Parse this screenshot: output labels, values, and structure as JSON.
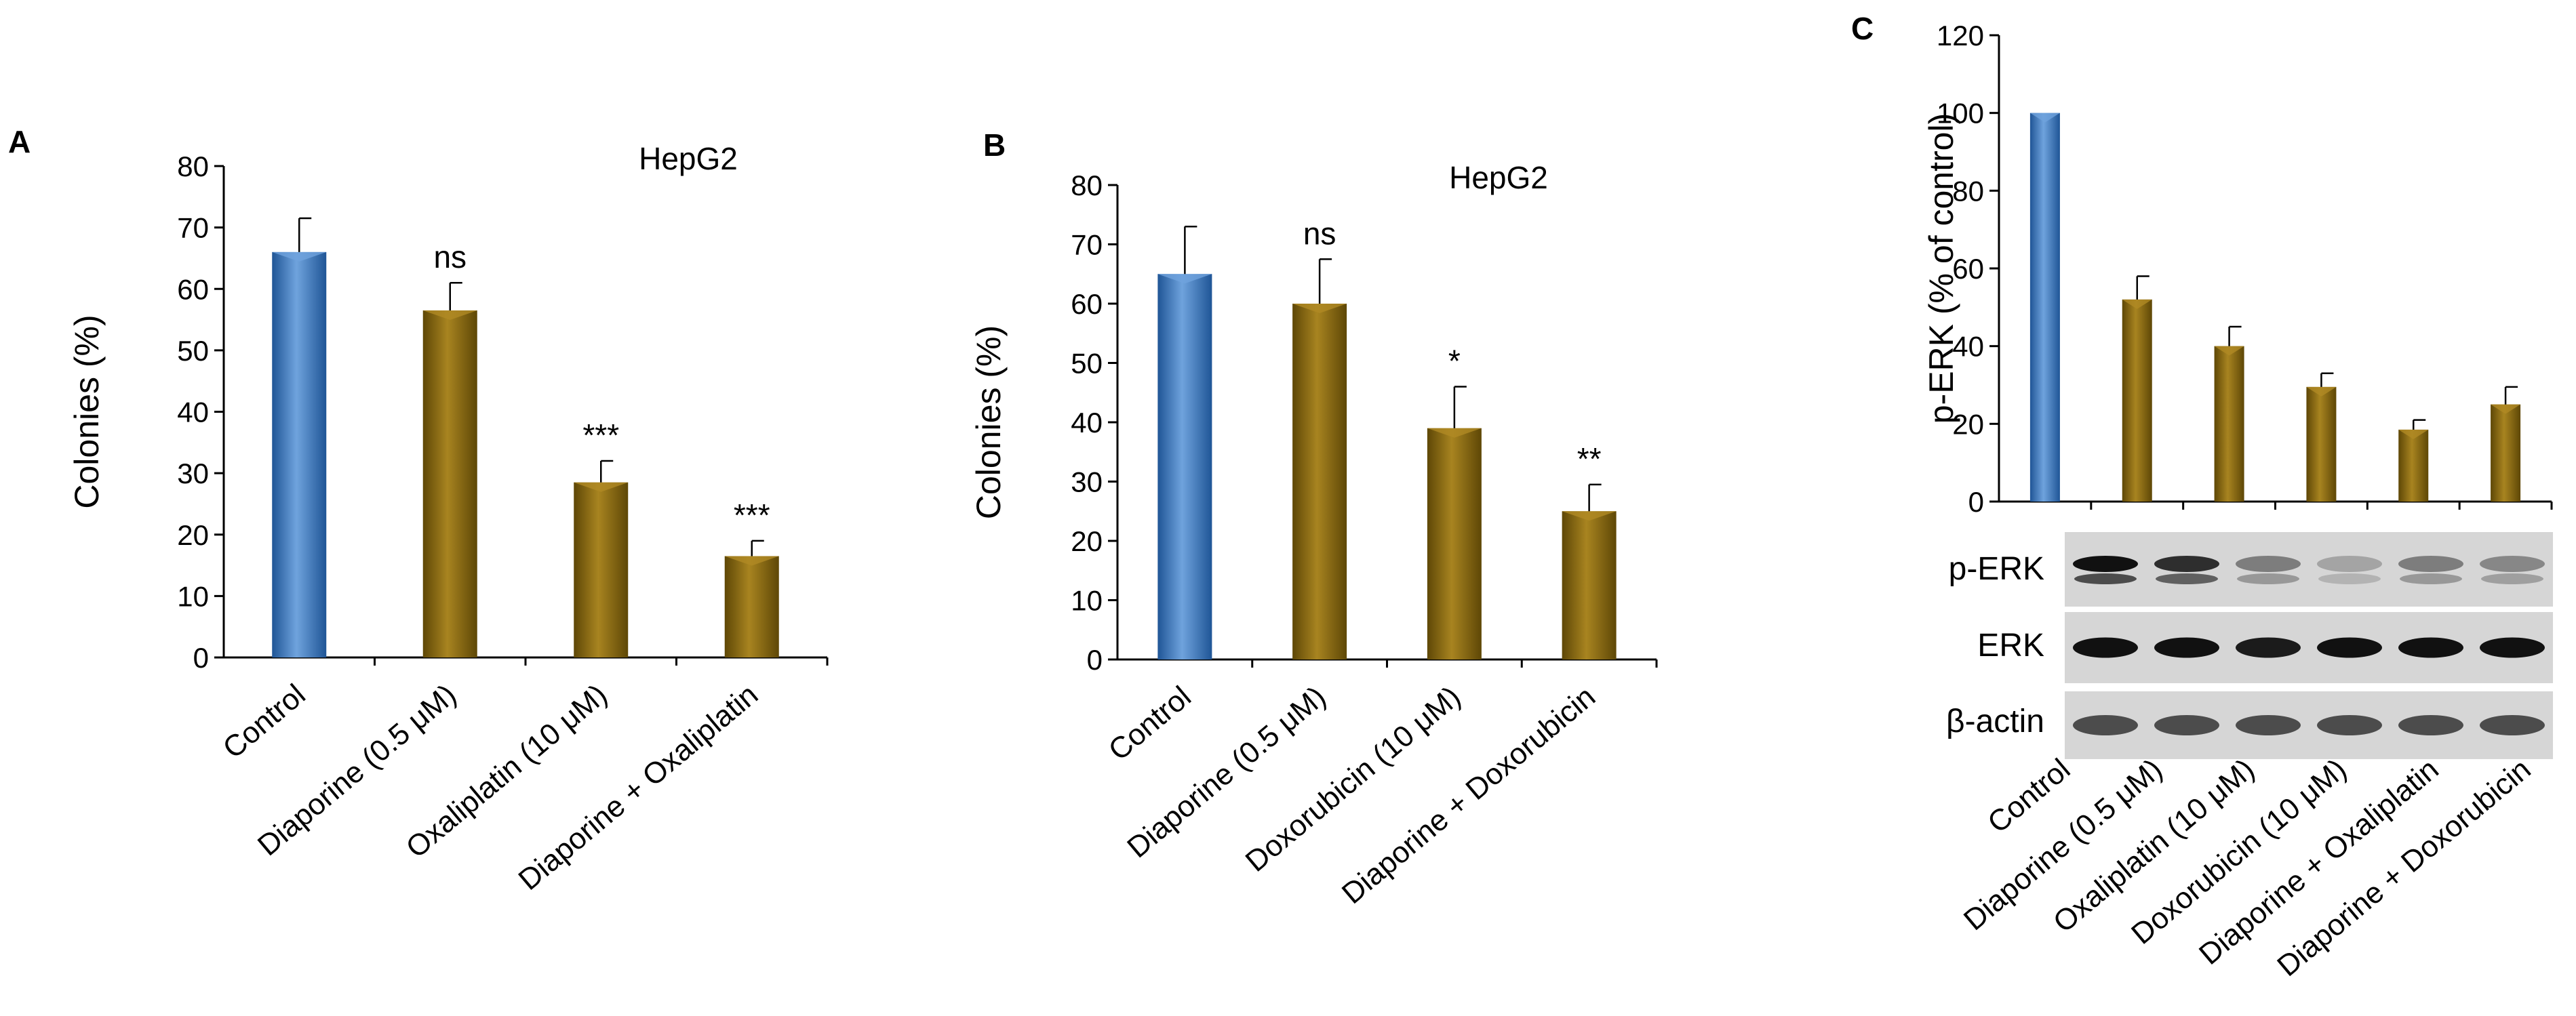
{
  "colors": {
    "control": "#2e6db4",
    "control_light": "#6fa3dd",
    "treated": "#7a5d0a",
    "treated_light": "#b08a24",
    "axis": "#000000",
    "blot_bg": "#d6d6d6"
  },
  "chart_data": [
    {
      "panel": "A",
      "type": "bar",
      "annotation": "HepG2",
      "categories": [
        "Control",
        "Diaporine (0.5 μM)",
        "Oxaliplatin (10 μM)",
        "Diaporine + Oxaliplatin"
      ],
      "values": [
        66,
        56.5,
        28.5,
        16.5
      ],
      "errors": [
        5.5,
        4.5,
        3.5,
        2.5
      ],
      "significance": [
        "",
        "ns",
        "***",
        "***"
      ],
      "ylabel": "Colonies (%)",
      "ylim": [
        0,
        80
      ],
      "yticks": [
        0,
        10,
        20,
        30,
        40,
        50,
        60,
        70,
        80
      ]
    },
    {
      "panel": "B",
      "type": "bar",
      "annotation": "HepG2",
      "categories": [
        "Control",
        "Diaporine (0.5 μM)",
        "Doxorubicin (10 μM)",
        "Diaporine + Doxorubicin"
      ],
      "values": [
        65,
        60,
        39,
        25
      ],
      "errors": [
        8,
        7.5,
        7,
        4.5
      ],
      "significance": [
        "",
        "ns",
        "*",
        "**"
      ],
      "ylabel": "Colonies (%)",
      "ylim": [
        0,
        80
      ],
      "yticks": [
        0,
        10,
        20,
        30,
        40,
        50,
        60,
        70,
        80
      ]
    },
    {
      "panel": "C",
      "type": "bar",
      "categories": [
        "Control",
        "Diaporine (0.5 μM)",
        "Oxaliplatin (10 μM)",
        "Doxorubicin (10 μM)",
        "Diaporine + Oxaliplatin",
        "Diaporine + Doxorubicin"
      ],
      "values": [
        100,
        52,
        40,
        29.5,
        18.5,
        25
      ],
      "errors": [
        0,
        6,
        5,
        3.5,
        2.5,
        4.5
      ],
      "ylabel": "p-ERK (% of control)",
      "ylim": [
        0,
        120
      ],
      "yticks": [
        0,
        20,
        40,
        60,
        80,
        100,
        120
      ],
      "blot_labels": [
        "p-ERK",
        "ERK",
        "β-actin"
      ]
    }
  ]
}
